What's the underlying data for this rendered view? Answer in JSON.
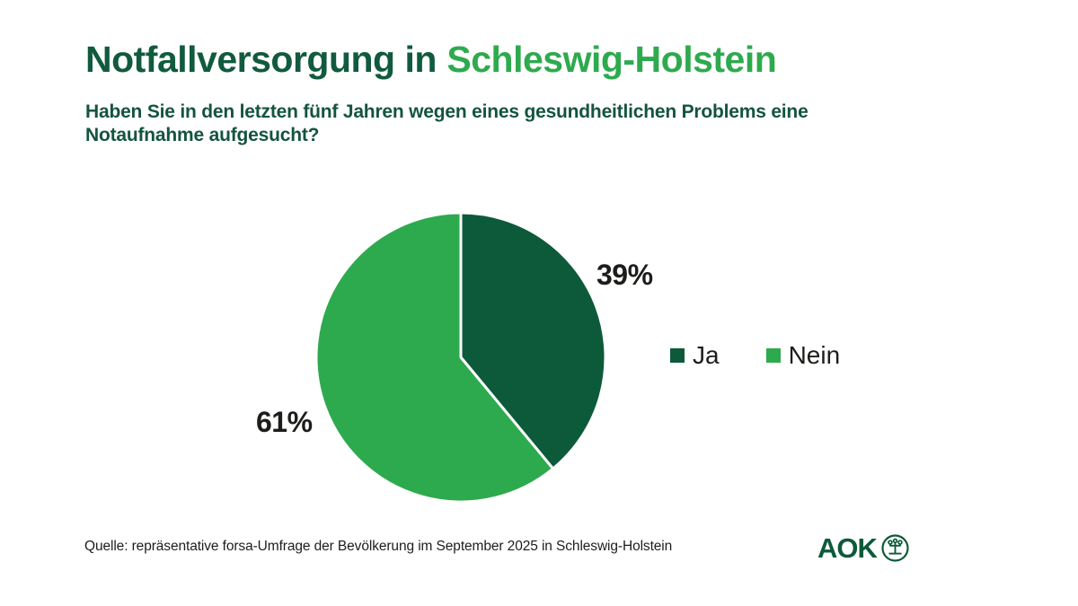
{
  "header": {
    "title_dark": "Notfallversorgung in",
    "title_light": "Schleswig-Holstein",
    "question": "Haben Sie in den letzten fünf Jahren wegen eines gesundheitlichen Problems eine Notaufnahme aufgesucht?"
  },
  "chart_data": {
    "type": "pie",
    "title": "Notfallversorgung in Schleswig-Holstein",
    "question": "Haben Sie in den letzten fünf Jahren wegen eines gesundheitlichen Problems eine Notaufnahme aufgesucht?",
    "unit": "%",
    "start_angle_deg": 0,
    "direction": "clockwise",
    "slice_gap_color": "#ffffff",
    "legend_position": "right",
    "slices": [
      {
        "label": "Ja",
        "value": 39,
        "data_label": "39%",
        "color": "#0d5a3a"
      },
      {
        "label": "Nein",
        "value": 61,
        "data_label": "61%",
        "color": "#2eaa4e"
      }
    ]
  },
  "footer": {
    "source": "Quelle: repräsentative forsa-Umfrage der Bevölkerung im September 2025 in Schleswig-Holstein",
    "logo_text": "AOK",
    "logo_icon": "aok-tree-of-life-icon"
  },
  "colors": {
    "brand_dark_green": "#115a3e",
    "brand_light_green": "#2eaa4e",
    "pie_dark_green": "#0d5a3a",
    "pie_light_green": "#2eaa4e",
    "text_black": "#1d1d1b",
    "background": "#ffffff"
  }
}
